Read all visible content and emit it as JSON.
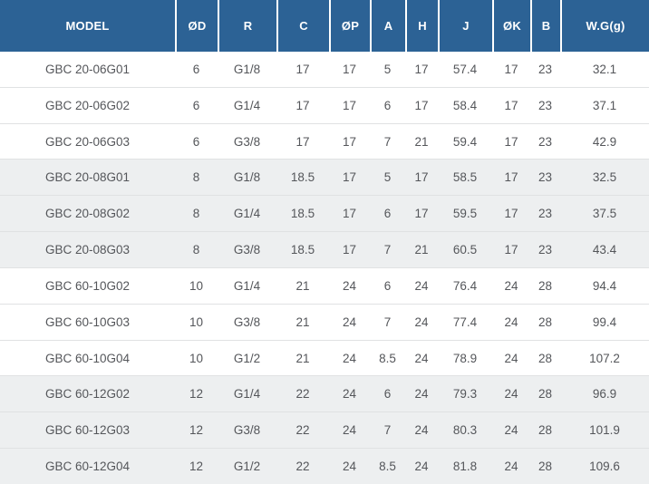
{
  "chart_data": {
    "type": "table",
    "title": "",
    "columns": [
      "MODEL",
      "ØD",
      "R",
      "C",
      "ØP",
      "A",
      "H",
      "J",
      "ØK",
      "B",
      "W.G(g)"
    ],
    "rows": [
      [
        "GBC 20-06G01",
        "6",
        "G1/8",
        "17",
        "17",
        "5",
        "17",
        "57.4",
        "17",
        "23",
        "32.1"
      ],
      [
        "GBC 20-06G02",
        "6",
        "G1/4",
        "17",
        "17",
        "6",
        "17",
        "58.4",
        "17",
        "23",
        "37.1"
      ],
      [
        "GBC 20-06G03",
        "6",
        "G3/8",
        "17",
        "17",
        "7",
        "21",
        "59.4",
        "17",
        "23",
        "42.9"
      ],
      [
        "GBC 20-08G01",
        "8",
        "G1/8",
        "18.5",
        "17",
        "5",
        "17",
        "58.5",
        "17",
        "23",
        "32.5"
      ],
      [
        "GBC 20-08G02",
        "8",
        "G1/4",
        "18.5",
        "17",
        "6",
        "17",
        "59.5",
        "17",
        "23",
        "37.5"
      ],
      [
        "GBC 20-08G03",
        "8",
        "G3/8",
        "18.5",
        "17",
        "7",
        "21",
        "60.5",
        "17",
        "23",
        "43.4"
      ],
      [
        "GBC 60-10G02",
        "10",
        "G1/4",
        "21",
        "24",
        "6",
        "24",
        "76.4",
        "24",
        "28",
        "94.4"
      ],
      [
        "GBC 60-10G03",
        "10",
        "G3/8",
        "21",
        "24",
        "7",
        "24",
        "77.4",
        "24",
        "28",
        "99.4"
      ],
      [
        "GBC 60-10G04",
        "10",
        "G1/2",
        "21",
        "24",
        "8.5",
        "24",
        "78.9",
        "24",
        "28",
        "107.2"
      ],
      [
        "GBC 60-12G02",
        "12",
        "G1/4",
        "22",
        "24",
        "6",
        "24",
        "79.3",
        "24",
        "28",
        "96.9"
      ],
      [
        "GBC 60-12G03",
        "12",
        "G3/8",
        "22",
        "24",
        "7",
        "24",
        "80.3",
        "24",
        "28",
        "101.9"
      ],
      [
        "GBC 60-12G04",
        "12",
        "G1/2",
        "22",
        "24",
        "8.5",
        "24",
        "81.8",
        "24",
        "28",
        "109.6"
      ]
    ],
    "layout": {
      "band_group_size": 3,
      "banding": "groups of 3 rows alternate white / light gray"
    }
  },
  "colors": {
    "header_bg": "#2c6295",
    "header_text": "#ffffff",
    "header_divider": "#ffffff",
    "row_alt_bg": "#edeff0",
    "row_border": "#e0e2e3",
    "cell_text": "#54565a"
  }
}
